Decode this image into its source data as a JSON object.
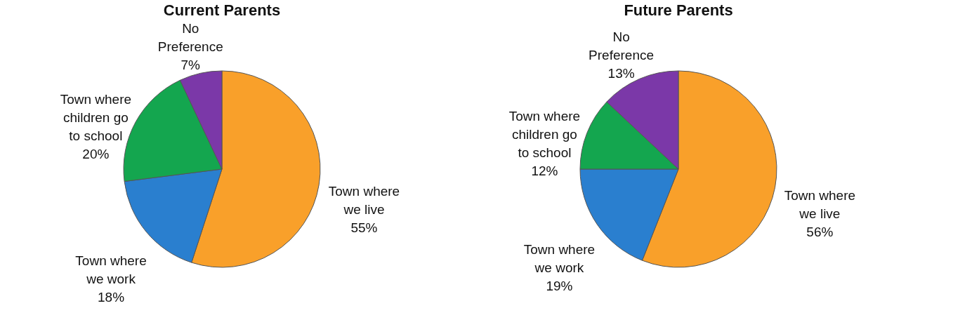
{
  "chart_data": [
    {
      "type": "pie",
      "title": "Current Parents",
      "categories": [
        "Town where we live",
        "Town where we work",
        "Town where children go to school",
        "No Preference"
      ],
      "values": [
        55,
        18,
        20,
        7
      ],
      "colors": [
        "#f9a02a",
        "#2a7fcf",
        "#14a64f",
        "#7b38a8"
      ],
      "value_labels": [
        "55%",
        "18%",
        "20%",
        "7%"
      ]
    },
    {
      "type": "pie",
      "title": "Future Parents",
      "categories": [
        "Town where we live",
        "Town where we work",
        "Town where children go to school",
        "No Preference"
      ],
      "values": [
        56,
        19,
        12,
        13
      ],
      "colors": [
        "#f9a02a",
        "#2a7fcf",
        "#14a64f",
        "#7b38a8"
      ],
      "value_labels": [
        "56%",
        "19%",
        "12%",
        "13%"
      ]
    }
  ]
}
